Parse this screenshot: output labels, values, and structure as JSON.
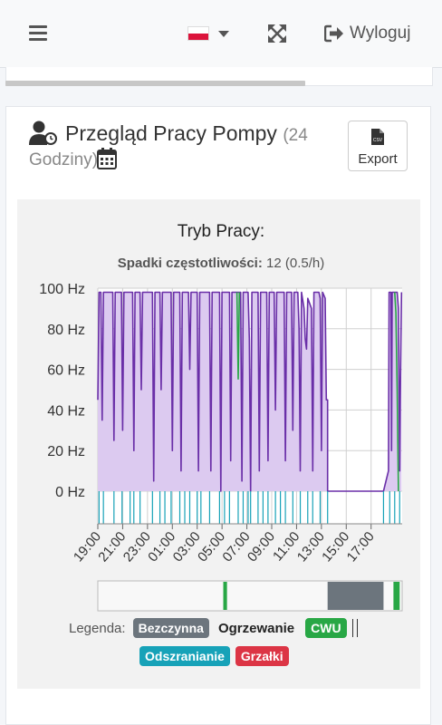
{
  "topbar": {
    "menu_icon": "bars-icon",
    "flag_icon": "poland-flag-icon",
    "expand_icon": "expand-arrows-icon",
    "logout_icon": "sign-out-icon",
    "logout_label": "Wyloguj"
  },
  "card": {
    "title": "Przegląd Pracy Pompy",
    "title_suffix": "(24",
    "title_line2": "Godziny)",
    "export_label": "Export",
    "export_icon": "csv-file-icon",
    "calendar_icon": "calendar-icon",
    "title_icon": "user-clock-icon"
  },
  "chart_data": {
    "type": "line",
    "title": "Tryb Pracy:",
    "subtitle_label": "Spadki częstotliwości:",
    "subtitle_value": "12 (0.5/h)",
    "yticks": [
      "100 Hz",
      "80 Hz",
      "60 Hz",
      "40 Hz",
      "20 Hz",
      "0 Hz"
    ],
    "ylim": [
      0,
      100
    ],
    "xticks": [
      "19:00",
      "21:00",
      "23:00",
      "01:00",
      "03:00",
      "05:00",
      "07:00",
      "09:00",
      "11:00",
      "13:00",
      "15:00",
      "17:00"
    ],
    "xrange_hours": [
      19,
      43.5
    ],
    "series": [
      {
        "color": "#6a2fa8",
        "fill": "#dccaf0",
        "points": [
          [
            19.0,
            45
          ],
          [
            19.1,
            98
          ],
          [
            19.25,
            98
          ],
          [
            19.35,
            35
          ],
          [
            19.45,
            98
          ],
          [
            20.2,
            98
          ],
          [
            20.3,
            25
          ],
          [
            20.4,
            98
          ],
          [
            20.9,
            98
          ],
          [
            21.0,
            30
          ],
          [
            21.1,
            98
          ],
          [
            21.8,
            98
          ],
          [
            21.9,
            20
          ],
          [
            22.0,
            98
          ],
          [
            22.4,
            98
          ],
          [
            22.5,
            50
          ],
          [
            22.6,
            98
          ],
          [
            23.4,
            98
          ],
          [
            23.5,
            5
          ],
          [
            23.6,
            98
          ],
          [
            24.0,
            98
          ],
          [
            24.1,
            50
          ],
          [
            24.2,
            98
          ],
          [
            24.9,
            98
          ],
          [
            25.0,
            20
          ],
          [
            25.1,
            98
          ],
          [
            25.6,
            98
          ],
          [
            25.7,
            10
          ],
          [
            25.8,
            98
          ],
          [
            26.3,
            98
          ],
          [
            26.4,
            60
          ],
          [
            26.5,
            98
          ],
          [
            27.0,
            98
          ],
          [
            27.1,
            10
          ],
          [
            27.2,
            98
          ],
          [
            28.0,
            98
          ],
          [
            28.1,
            10
          ],
          [
            28.2,
            98
          ],
          [
            28.8,
            98
          ],
          [
            28.9,
            0
          ],
          [
            29.0,
            98
          ],
          [
            29.6,
            98
          ],
          [
            29.7,
            15
          ],
          [
            29.8,
            98
          ],
          [
            30.5,
            98
          ],
          [
            30.6,
            5
          ],
          [
            30.7,
            98
          ],
          [
            31.1,
            98
          ],
          [
            31.2,
            75
          ],
          [
            31.3,
            0
          ],
          [
            31.4,
            98
          ],
          [
            31.9,
            98
          ],
          [
            32.0,
            10
          ],
          [
            32.1,
            98
          ],
          [
            32.6,
            98
          ],
          [
            32.7,
            15
          ],
          [
            32.8,
            98
          ],
          [
            33.2,
            98
          ],
          [
            33.3,
            40
          ],
          [
            33.4,
            98
          ],
          [
            34.0,
            98
          ],
          [
            34.1,
            15
          ],
          [
            34.2,
            98
          ],
          [
            34.6,
            98
          ],
          [
            34.7,
            30
          ],
          [
            34.8,
            98
          ],
          [
            35.1,
            98
          ],
          [
            35.2,
            80
          ],
          [
            35.3,
            10
          ],
          [
            35.4,
            98
          ],
          [
            35.6,
            90
          ],
          [
            35.7,
            75
          ],
          [
            35.8,
            70
          ],
          [
            35.9,
            95
          ],
          [
            36.2,
            90
          ],
          [
            36.3,
            10
          ],
          [
            36.4,
            98
          ],
          [
            36.8,
            98
          ],
          [
            36.9,
            95
          ],
          [
            37.0,
            20
          ],
          [
            37.1,
            98
          ],
          [
            37.3,
            95
          ],
          [
            37.4,
            45
          ],
          [
            37.5,
            45
          ],
          [
            37.5,
            0
          ],
          [
            42.0,
            0
          ],
          [
            42.4,
            10
          ],
          [
            42.45,
            98
          ],
          [
            42.6,
            98
          ],
          [
            42.65,
            20
          ],
          [
            42.7,
            98
          ],
          [
            43.1,
            98
          ],
          [
            43.2,
            90
          ],
          [
            43.3,
            10
          ],
          [
            43.35,
            45
          ],
          [
            43.45,
            98
          ]
        ]
      },
      {
        "color": "#28a745",
        "points": [
          [
            30.2,
            98
          ],
          [
            30.3,
            55
          ],
          [
            30.4,
            98
          ],
          [
            42.9,
            98
          ],
          [
            43.0,
            88
          ],
          [
            43.1,
            50
          ],
          [
            43.2,
            0
          ]
        ]
      }
    ],
    "status_ticks_hours": [
      19.1,
      19.45,
      20.3,
      20.95,
      21.6,
      21.9,
      22.4,
      23.4,
      24.0,
      24.4,
      24.9,
      25.6,
      26.0,
      26.4,
      27.0,
      27.3,
      28.0,
      28.8,
      29.2,
      29.6,
      30.3,
      30.7,
      31.1,
      31.3,
      31.9,
      32.3,
      32.7,
      33.3,
      33.7,
      34.1,
      34.7,
      35.3,
      35.9,
      36.3,
      36.9,
      37.5,
      42.0,
      42.5,
      42.9,
      43.3
    ],
    "status_tick_color": "#17a2b8",
    "timeline": [
      {
        "start": 19.0,
        "end": 29.1,
        "state": "Ogrzewanie",
        "color": "#f8f8f8"
      },
      {
        "start": 29.1,
        "end": 29.4,
        "state": "CWU",
        "color": "#28a745"
      },
      {
        "start": 29.4,
        "end": 37.5,
        "state": "Ogrzewanie",
        "color": "#f8f8f8"
      },
      {
        "start": 37.5,
        "end": 42.0,
        "state": "Bezczynna",
        "color": "#6c757d"
      },
      {
        "start": 42.0,
        "end": 42.8,
        "state": "Ogrzewanie",
        "color": "#f8f8f8"
      },
      {
        "start": 42.8,
        "end": 43.3,
        "state": "CWU",
        "color": "#28a745"
      },
      {
        "start": 43.3,
        "end": 43.5,
        "state": "Ogrzewanie",
        "color": "#f8f8f8"
      }
    ],
    "grid": true
  },
  "legend": {
    "label": "Legenda:",
    "items": [
      {
        "label": "Bezczynna",
        "color": "#6c757d"
      },
      {
        "label": "Ogrzewanie",
        "color": ""
      },
      {
        "label": "CWU",
        "color": "#28a745"
      },
      {
        "label": "Odszranianie",
        "color": "#17a2b8"
      },
      {
        "label": "Grzałki",
        "color": "#dc3545"
      }
    ]
  }
}
